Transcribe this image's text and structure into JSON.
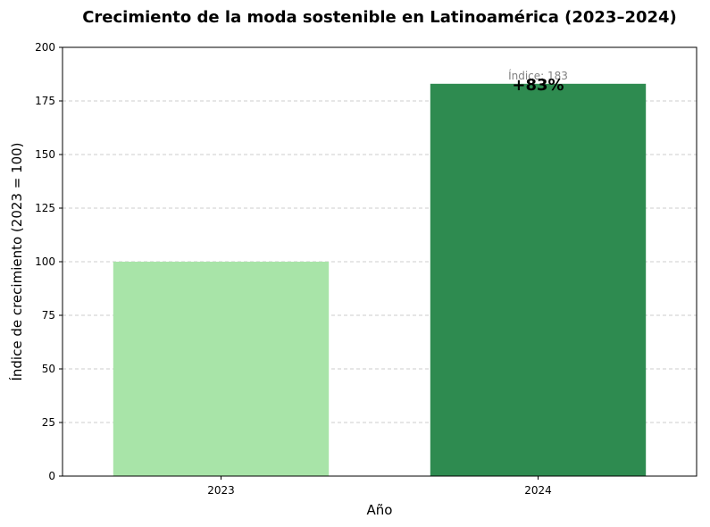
{
  "chart_data": {
    "type": "bar",
    "title": "Crecimiento de la moda sostenible en Latinoamérica (2023–2024)",
    "xlabel": "Año",
    "ylabel": "Índice de crecimiento (2023 = 100)",
    "categories": [
      "2023",
      "2024"
    ],
    "values": [
      100,
      183
    ],
    "colors": [
      "#a8e4a8",
      "#2e8b50"
    ],
    "ylim": [
      0,
      200
    ],
    "yticks": [
      0,
      25,
      50,
      75,
      100,
      125,
      150,
      175,
      200
    ],
    "grid": "horizontal-dashed",
    "annotations": [
      {
        "category": "2024",
        "text": "+83%"
      },
      {
        "category": "2024",
        "text": "Índice: 183"
      }
    ]
  }
}
